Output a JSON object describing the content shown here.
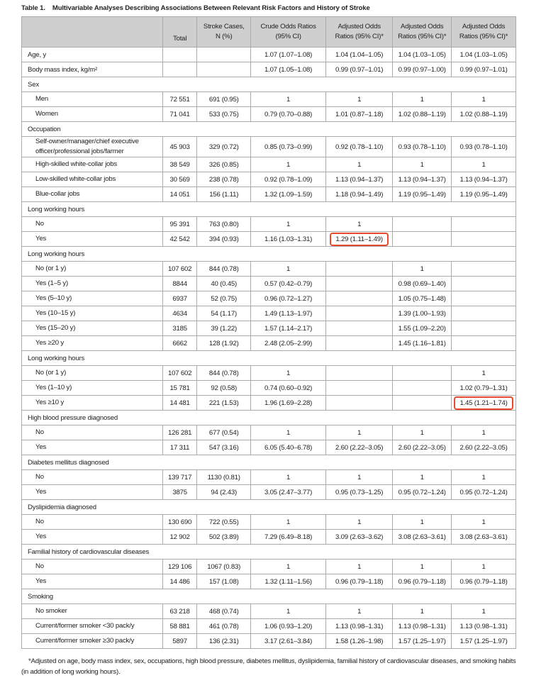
{
  "title": {
    "number": "Table 1.",
    "text": "Multivariable Analyses Describing Associations Between Relevant Risk Factors and History of Stroke"
  },
  "columns": [
    "",
    "Total",
    "Stroke Cases, N (%)",
    "Crude Odds Ratios (95% CI)",
    "Adjusted Odds Ratios (95% CI)*",
    "Adjusted Odds Ratios (95% CI)*",
    "Adjusted Odds Ratios (95% CI)*"
  ],
  "highlight_color": "#e8492c",
  "rows": [
    {
      "type": "var",
      "cells": [
        "Age, y",
        "",
        "",
        "1.07 (1.07–1.08)",
        "1.04 (1.04–1.05)",
        "1.04 (1.03–1.05)",
        "1.04 (1.03–1.05)"
      ]
    },
    {
      "type": "var",
      "cells": [
        "Body mass index, kg/m²",
        "",
        "",
        "1.07 (1.05–1.08)",
        "0.99 (0.97–1.01)",
        "0.99 (0.97–1.00)",
        "0.99 (0.97–1.01)"
      ]
    },
    {
      "type": "section",
      "label": "Sex"
    },
    {
      "type": "sub",
      "cells": [
        "Men",
        "72 551",
        "691 (0.95)",
        "1",
        "1",
        "1",
        "1"
      ]
    },
    {
      "type": "sub",
      "cells": [
        "Women",
        "71 041",
        "533 (0.75)",
        "0.79 (0.70–0.88)",
        "1.01 (0.87–1.18)",
        "1.02 (0.88–1.19)",
        "1.02 (0.88–1.19)"
      ]
    },
    {
      "type": "section",
      "label": "Occupation"
    },
    {
      "type": "sub",
      "cells": [
        "Self-owner/manager/chief executive officer/professional jobs/farmer",
        "45 903",
        "329 (0.72)",
        "0.85 (0.73–0.99)",
        "0.92 (0.78–1.10)",
        "0.93 (0.78–1.10)",
        "0.93 (0.78–1.10)"
      ]
    },
    {
      "type": "sub",
      "cells": [
        "High-skilled white-collar jobs",
        "38 549",
        "326 (0.85)",
        "1",
        "1",
        "1",
        "1"
      ]
    },
    {
      "type": "sub",
      "cells": [
        "Low-skilled white-collar jobs",
        "30 569",
        "238 (0.78)",
        "0.92 (0.78–1.09)",
        "1.13 (0.94–1.37)",
        "1.13 (0.94–1.37)",
        "1.13 (0.94–1.37)"
      ]
    },
    {
      "type": "sub",
      "cells": [
        "Blue-collar jobs",
        "14 051",
        "156 (1.11)",
        "1.32 (1.09–1.59)",
        "1.18 (0.94–1.49)",
        "1.19 (0.95–1.49)",
        "1.19 (0.95–1.49)"
      ]
    },
    {
      "type": "section",
      "label": "Long working hours"
    },
    {
      "type": "sub",
      "cells": [
        "No",
        "95 391",
        "763 (0.80)",
        "1",
        "1",
        "",
        ""
      ]
    },
    {
      "type": "sub",
      "cells": [
        "Yes",
        "42 542",
        "394 (0.93)",
        "1.16 (1.03–1.31)",
        "1.29 (1.11–1.49)",
        "",
        ""
      ],
      "highlight": 4
    },
    {
      "type": "section",
      "label": "Long working hours"
    },
    {
      "type": "sub",
      "cells": [
        "No (or 1 y)",
        "107 602",
        "844 (0.78)",
        "1",
        "",
        "1",
        ""
      ]
    },
    {
      "type": "sub",
      "cells": [
        "Yes (1–5 y)",
        "8844",
        "40 (0.45)",
        "0.57 (0.42–0.79)",
        "",
        "0.98 (0.69–1.40)",
        ""
      ]
    },
    {
      "type": "sub",
      "cells": [
        "Yes (5–10 y)",
        "6937",
        "52 (0.75)",
        "0.96 (0.72–1.27)",
        "",
        "1.05 (0.75–1.48)",
        ""
      ]
    },
    {
      "type": "sub",
      "cells": [
        "Yes (10–15 y)",
        "4634",
        "54 (1.17)",
        "1.49 (1.13–1.97)",
        "",
        "1.39 (1.00–1.93)",
        ""
      ]
    },
    {
      "type": "sub",
      "cells": [
        "Yes (15–20 y)",
        "3185",
        "39 (1.22)",
        "1.57 (1.14–2.17)",
        "",
        "1.55 (1.09–2.20)",
        ""
      ]
    },
    {
      "type": "sub",
      "cells": [
        "Yes ≥20 y",
        "6662",
        "128 (1.92)",
        "2.48 (2.05–2.99)",
        "",
        "1.45 (1.16–1.81)",
        ""
      ]
    },
    {
      "type": "section",
      "label": "Long working hours"
    },
    {
      "type": "sub",
      "cells": [
        "No (or 1 y)",
        "107 602",
        "844 (0.78)",
        "1",
        "",
        "",
        "1"
      ]
    },
    {
      "type": "sub",
      "cells": [
        "Yes (1–10 y)",
        "15 781",
        "92 (0.58)",
        "0.74 (0.60–0.92)",
        "",
        "",
        "1.02 (0.79–1.31)"
      ]
    },
    {
      "type": "sub",
      "cells": [
        "Yes ≥10 y",
        "14 481",
        "221 (1.53)",
        "1.96 (1.69–2.28)",
        "",
        "",
        "1.45 (1.21–1.74)"
      ],
      "highlight": 6
    },
    {
      "type": "section",
      "label": "High blood pressure diagnosed"
    },
    {
      "type": "sub",
      "cells": [
        "No",
        "126 281",
        "677 (0.54)",
        "1",
        "1",
        "1",
        "1"
      ]
    },
    {
      "type": "sub",
      "cells": [
        "Yes",
        "17 311",
        "547 (3.16)",
        "6.05 (5.40–6.78)",
        "2.60 (2.22–3.05)",
        "2.60 (2.22–3.05)",
        "2.60 (2.22–3.05)"
      ]
    },
    {
      "type": "section",
      "label": "Diabetes mellitus diagnosed"
    },
    {
      "type": "sub",
      "cells": [
        "No",
        "139 717",
        "1130 (0.81)",
        "1",
        "1",
        "1",
        "1"
      ]
    },
    {
      "type": "sub",
      "cells": [
        "Yes",
        "3875",
        "94 (2.43)",
        "3.05 (2.47–3.77)",
        "0.95 (0.73–1.25)",
        "0.95 (0.72–1.24)",
        "0.95 (0.72–1.24)"
      ]
    },
    {
      "type": "section",
      "label": "Dyslipidemia diagnosed"
    },
    {
      "type": "sub",
      "cells": [
        "No",
        "130 690",
        "722 (0.55)",
        "1",
        "1",
        "1",
        "1"
      ]
    },
    {
      "type": "sub",
      "cells": [
        "Yes",
        "12 902",
        "502 (3.89)",
        "7.29 (6.49–8.18)",
        "3.09 (2.63–3.62)",
        "3.08 (2.63–3.61)",
        "3.08 (2.63–3.61)"
      ]
    },
    {
      "type": "section",
      "label": "Familial history of cardiovascular diseases"
    },
    {
      "type": "sub",
      "cells": [
        "No",
        "129 106",
        "1067 (0.83)",
        "1",
        "1",
        "1",
        "1"
      ]
    },
    {
      "type": "sub",
      "cells": [
        "Yes",
        "14 486",
        "157 (1.08)",
        "1.32 (1.11–1.56)",
        "0.96 (0.79–1.18)",
        "0.96 (0.79–1.18)",
        "0.96 (0.79–1.18)"
      ]
    },
    {
      "type": "section",
      "label": "Smoking"
    },
    {
      "type": "sub",
      "cells": [
        "No smoker",
        "63 218",
        "468 (0.74)",
        "1",
        "1",
        "1",
        "1"
      ]
    },
    {
      "type": "sub",
      "cells": [
        "Current/former smoker <30 pack/y",
        "58 881",
        "461 (0.78)",
        "1.06 (0.93–1.20)",
        "1.13 (0.98–1.31)",
        "1.13 (0.98–1.31)",
        "1.13 (0.98–1.31)"
      ]
    },
    {
      "type": "sub",
      "cells": [
        "Current/former smoker ≥30 pack/y",
        "5897",
        "136 (2.31)",
        "3.17 (2.61–3.84)",
        "1.58 (1.26–1.98)",
        "1.57 (1.25–1.97)",
        "1.57 (1.25–1.97)"
      ]
    }
  ],
  "footnote": "*Adjusted on age, body mass index, sex, occupations, high blood pressure, diabetes mellitus, dyslipidemia, familial history of cardiovascular diseases, and smoking habits (in addition of long working hours)."
}
